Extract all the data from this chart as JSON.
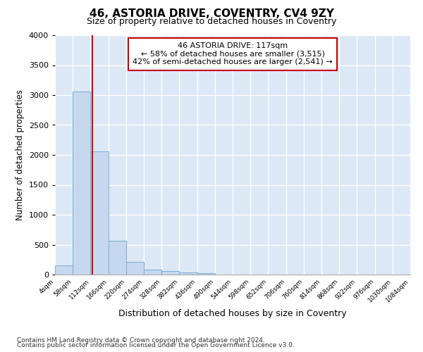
{
  "title": "46, ASTORIA DRIVE, COVENTRY, CV4 9ZY",
  "subtitle": "Size of property relative to detached houses in Coventry",
  "xlabel": "Distribution of detached houses by size in Coventry",
  "ylabel": "Number of detached properties",
  "bar_color": "#c5d8ee",
  "bar_edge_color": "#7aadd4",
  "annotation_title": "46 ASTORIA DRIVE: 117sqm",
  "annotation_line1": "← 58% of detached houses are smaller (3,515)",
  "annotation_line2": "42% of semi-detached houses are larger (2,541) →",
  "property_size": 117,
  "vline_color": "#cc0000",
  "annotation_box_color": "#cc0000",
  "footer1": "Contains HM Land Registry data © Crown copyright and database right 2024.",
  "footer2": "Contains public sector information licensed under the Open Government Licence v3.0.",
  "bin_edges": [
    4,
    58,
    112,
    166,
    220,
    274,
    328,
    382,
    436,
    490,
    544,
    598,
    652,
    706,
    760,
    814,
    868,
    922,
    976,
    1030,
    1084
  ],
  "bin_counts": [
    150,
    3060,
    2060,
    560,
    210,
    80,
    55,
    30,
    20,
    0,
    0,
    0,
    0,
    0,
    0,
    0,
    0,
    0,
    0,
    0
  ],
  "ylim": [
    0,
    4000
  ],
  "yticks": [
    0,
    500,
    1000,
    1500,
    2000,
    2500,
    3000,
    3500,
    4000
  ],
  "background_color": "#dce8f5"
}
